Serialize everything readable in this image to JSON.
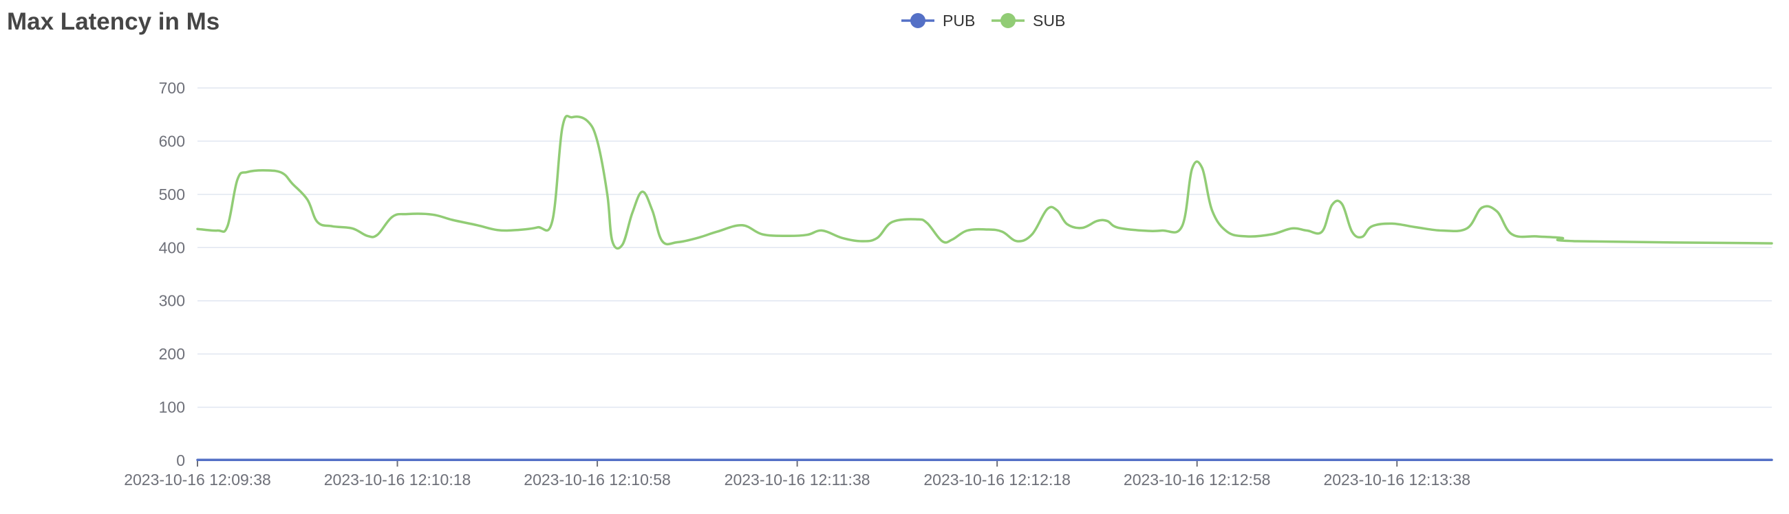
{
  "title": "Max Latency in Ms",
  "chart_data": {
    "type": "line",
    "title": "Max Latency in Ms",
    "ylim": [
      0,
      700
    ],
    "y_ticks": [
      "0",
      "100",
      "200",
      "300",
      "400",
      "500",
      "600",
      "700"
    ],
    "x_tick_labels": [
      "2023-10-16 12:09:38",
      "2023-10-16 12:10:18",
      "2023-10-16 12:10:58",
      "2023-10-16 12:11:38",
      "2023-10-16 12:12:18",
      "2023-10-16 12:12:58",
      "2023-10-16 12:13:38"
    ],
    "x_start": "2023-10-16 12:09:38",
    "x_end": "2023-10-16 12:14:53",
    "grid": true,
    "legend_position": "top-center",
    "smooth": true,
    "series": [
      {
        "name": "PUB",
        "color": "#5470c6",
        "points": [
          [
            "2023-10-16 12:09:38",
            1
          ],
          [
            "2023-10-16 12:14:53",
            1
          ]
        ]
      },
      {
        "name": "SUB",
        "color": "#91cc75",
        "points": [
          [
            "2023-10-16 12:09:38",
            435
          ],
          [
            "2023-10-16 12:09:42",
            432
          ],
          [
            "2023-10-16 12:09:44",
            440
          ],
          [
            "2023-10-16 12:09:46",
            528
          ],
          [
            "2023-10-16 12:09:48",
            542
          ],
          [
            "2023-10-16 12:09:52",
            545
          ],
          [
            "2023-10-16 12:09:55",
            540
          ],
          [
            "2023-10-16 12:09:57",
            520
          ],
          [
            "2023-10-16 12:09:60",
            490
          ],
          [
            "2023-10-16 12:10:02",
            448
          ],
          [
            "2023-10-16 12:10:05",
            440
          ],
          [
            "2023-10-16 12:10:09",
            436
          ],
          [
            "2023-10-16 12:10:12",
            422
          ],
          [
            "2023-10-16 12:10:14",
            424
          ],
          [
            "2023-10-16 12:10:17",
            458
          ],
          [
            "2023-10-16 12:10:20",
            463
          ],
          [
            "2023-10-16 12:10:25",
            462
          ],
          [
            "2023-10-16 12:10:29",
            452
          ],
          [
            "2023-10-16 12:10:34",
            442
          ],
          [
            "2023-10-16 12:10:38",
            433
          ],
          [
            "2023-10-16 12:10:42",
            433
          ],
          [
            "2023-10-16 12:10:46",
            438
          ],
          [
            "2023-10-16 12:10:49",
            450
          ],
          [
            "2023-10-16 12:10:51",
            625
          ],
          [
            "2023-10-16 12:10:53",
            645
          ],
          [
            "2023-10-16 12:10:56",
            638
          ],
          [
            "2023-10-16 12:10:58",
            600
          ],
          [
            "2023-10-16 12:11:00",
            500
          ],
          [
            "2023-10-16 12:11:01",
            412
          ],
          [
            "2023-10-16 12:11:03",
            405
          ],
          [
            "2023-10-16 12:11:05",
            465
          ],
          [
            "2023-10-16 12:11:07",
            505
          ],
          [
            "2023-10-16 12:11:09",
            470
          ],
          [
            "2023-10-16 12:11:11",
            412
          ],
          [
            "2023-10-16 12:11:14",
            410
          ],
          [
            "2023-10-16 12:11:18",
            418
          ],
          [
            "2023-10-16 12:11:22",
            430
          ],
          [
            "2023-10-16 12:11:27",
            442
          ],
          [
            "2023-10-16 12:11:31",
            425
          ],
          [
            "2023-10-16 12:11:36",
            422
          ],
          [
            "2023-10-16 12:11:40",
            424
          ],
          [
            "2023-10-16 12:11:43",
            432
          ],
          [
            "2023-10-16 12:11:47",
            418
          ],
          [
            "2023-10-16 12:11:51",
            412
          ],
          [
            "2023-10-16 12:11:54",
            418
          ],
          [
            "2023-10-16 12:11:57",
            448
          ],
          [
            "2023-10-16 12:12:02",
            453
          ],
          [
            "2023-10-16 12:12:04",
            446
          ],
          [
            "2023-10-16 12:12:07",
            412
          ],
          [
            "2023-10-16 12:12:09",
            415
          ],
          [
            "2023-10-16 12:12:12",
            432
          ],
          [
            "2023-10-16 12:12:16",
            434
          ],
          [
            "2023-10-16 12:12:19",
            430
          ],
          [
            "2023-10-16 12:12:22",
            412
          ],
          [
            "2023-10-16 12:12:25",
            425
          ],
          [
            "2023-10-16 12:12:28",
            472
          ],
          [
            "2023-10-16 12:12:30",
            470
          ],
          [
            "2023-10-16 12:12:32",
            444
          ],
          [
            "2023-10-16 12:12:35",
            437
          ],
          [
            "2023-10-16 12:12:38",
            450
          ],
          [
            "2023-10-16 12:12:40",
            450
          ],
          [
            "2023-10-16 12:12:42",
            438
          ],
          [
            "2023-10-16 12:12:47",
            432
          ],
          [
            "2023-10-16 12:12:51",
            432
          ],
          [
            "2023-10-16 12:12:55",
            440
          ],
          [
            "2023-10-16 12:12:57",
            548
          ],
          [
            "2023-10-16 12:12:59",
            550
          ],
          [
            "2023-10-16 12:13:01",
            470
          ],
          [
            "2023-10-16 12:13:04",
            430
          ],
          [
            "2023-10-16 12:13:08",
            421
          ],
          [
            "2023-10-16 12:13:13",
            425
          ],
          [
            "2023-10-16 12:13:17",
            436
          ],
          [
            "2023-10-16 12:13:20",
            432
          ],
          [
            "2023-10-16 12:13:23",
            430
          ],
          [
            "2023-10-16 12:13:25",
            480
          ],
          [
            "2023-10-16 12:13:27",
            482
          ],
          [
            "2023-10-16 12:13:29",
            430
          ],
          [
            "2023-10-16 12:13:31",
            420
          ],
          [
            "2023-10-16 12:13:33",
            440
          ],
          [
            "2023-10-16 12:13:37",
            445
          ],
          [
            "2023-10-16 12:13:42",
            438
          ],
          [
            "2023-10-16 12:13:47",
            432
          ],
          [
            "2023-10-16 12:13:52",
            436
          ],
          [
            "2023-10-16 12:13:55",
            475
          ],
          [
            "2023-10-16 12:13:58",
            468
          ],
          [
            "2023-10-16 12:14:01",
            425
          ],
          [
            "2023-10-16 12:14:06",
            421
          ],
          [
            "2023-10-16 12:14:11",
            418
          ],
          [
            "2023-10-16 12:14:14",
            412
          ],
          [
            "2023-10-16 12:14:53",
            408
          ]
        ]
      }
    ]
  }
}
